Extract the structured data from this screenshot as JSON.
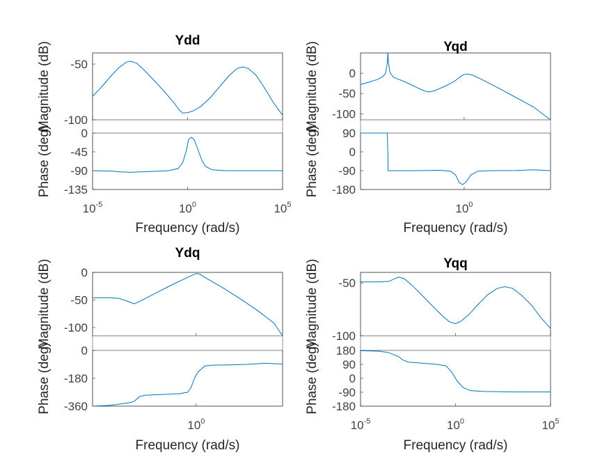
{
  "chart_data": [
    {
      "type": "line",
      "title": "Ydd",
      "xlabel": "Frequency  (rad/s)",
      "xscale": "log",
      "xlim": [
        1e-05,
        100000.0
      ],
      "x_ticks": [
        -5,
        0,
        5
      ],
      "magnitude": {
        "ylabel": "Magnitude (dB)",
        "ylim": [
          -100,
          -40
        ],
        "y_ticks": [
          -50,
          -100
        ],
        "points": [
          [
            -5,
            -79
          ],
          [
            -4.5,
            -70
          ],
          [
            -4,
            -60
          ],
          [
            -3.6,
            -53
          ],
          [
            -3.2,
            -48
          ],
          [
            -3,
            -47.5
          ],
          [
            -2.7,
            -49
          ],
          [
            -2.3,
            -55
          ],
          [
            -1.8,
            -64
          ],
          [
            -1.2,
            -75
          ],
          [
            -0.7,
            -85
          ],
          [
            -0.45,
            -91
          ],
          [
            -0.25,
            -94
          ],
          [
            0,
            -93.5
          ],
          [
            0.3,
            -92
          ],
          [
            0.7,
            -88
          ],
          [
            1.2,
            -80
          ],
          [
            1.7,
            -70
          ],
          [
            2.2,
            -60
          ],
          [
            2.6,
            -54
          ],
          [
            2.9,
            -52.5
          ],
          [
            3.2,
            -54
          ],
          [
            3.6,
            -60
          ],
          [
            4,
            -70
          ],
          [
            4.5,
            -84
          ],
          [
            5,
            -96
          ]
        ]
      },
      "phase": {
        "ylabel": "Phase (deg)",
        "ylim": [
          -135,
          0
        ],
        "y_ticks": [
          0,
          -45,
          -90,
          -135
        ],
        "points": [
          [
            -5,
            -90
          ],
          [
            -4,
            -91
          ],
          [
            -3.5,
            -93
          ],
          [
            -3,
            -94
          ],
          [
            -2.5,
            -93
          ],
          [
            -1.5,
            -91
          ],
          [
            -1,
            -90
          ],
          [
            -0.5,
            -85
          ],
          [
            -0.25,
            -70
          ],
          [
            -0.05,
            -40
          ],
          [
            0.05,
            -16
          ],
          [
            0.2,
            -10
          ],
          [
            0.35,
            -16
          ],
          [
            0.55,
            -40
          ],
          [
            0.75,
            -65
          ],
          [
            0.95,
            -80
          ],
          [
            1.3,
            -88
          ],
          [
            2,
            -90
          ],
          [
            3,
            -90
          ],
          [
            4,
            -90
          ],
          [
            5,
            -90
          ]
        ]
      }
    },
    {
      "type": "line",
      "title": "Yqd",
      "xlabel": "Frequency  (rad/s)",
      "xscale": "log",
      "xlim": [
        1e-06,
        100000.0
      ],
      "x_ticks": [
        0
      ],
      "magnitude": {
        "ylabel": "Magnitude (dB)",
        "ylim": [
          -115,
          50
        ],
        "y_ticks": [
          0,
          -50,
          -100
        ],
        "points": [
          [
            -6,
            -28
          ],
          [
            -5.5,
            -22
          ],
          [
            -5,
            -15
          ],
          [
            -4.7,
            -8
          ],
          [
            -4.55,
            0
          ],
          [
            -4.45,
            25
          ],
          [
            -4.42,
            50
          ],
          [
            -4.38,
            25
          ],
          [
            -4.3,
            2
          ],
          [
            -4.1,
            -10
          ],
          [
            -3.5,
            -20
          ],
          [
            -3,
            -30
          ],
          [
            -2.5,
            -40
          ],
          [
            -2.2,
            -45
          ],
          [
            -2,
            -46
          ],
          [
            -1.7,
            -43
          ],
          [
            -1,
            -30
          ],
          [
            -0.5,
            -18
          ],
          [
            -0.2,
            -8
          ],
          [
            0,
            -3
          ],
          [
            0.2,
            -2
          ],
          [
            0.5,
            -5
          ],
          [
            1,
            -15
          ],
          [
            2,
            -37
          ],
          [
            3,
            -60
          ],
          [
            4,
            -83
          ],
          [
            5,
            -115
          ]
        ]
      },
      "phase": {
        "ylabel": "Phase (deg)",
        "ylim": [
          -180,
          90
        ],
        "y_ticks": [
          90,
          0,
          -90,
          -180
        ],
        "points": [
          [
            -6,
            90
          ],
          [
            -4.45,
            90
          ],
          [
            -4.42,
            0
          ],
          [
            -4.4,
            -90
          ],
          [
            -3,
            -90
          ],
          [
            -2,
            -89
          ],
          [
            -1.5,
            -88
          ],
          [
            -0.8,
            -92
          ],
          [
            -0.5,
            -110
          ],
          [
            -0.3,
            -145
          ],
          [
            -0.1,
            -157
          ],
          [
            0.1,
            -145
          ],
          [
            0.4,
            -110
          ],
          [
            0.8,
            -92
          ],
          [
            1.5,
            -90
          ],
          [
            3,
            -89
          ],
          [
            4,
            -86
          ],
          [
            4.5,
            -88
          ],
          [
            5,
            -90
          ]
        ]
      }
    },
    {
      "type": "line",
      "title": "Ydq",
      "xlabel": "Frequency  (rad/s)",
      "xscale": "log",
      "xlim": [
        1e-06,
        100000.0
      ],
      "x_ticks": [
        0
      ],
      "magnitude": {
        "ylabel": "Magnitude (dB)",
        "ylim": [
          -115,
          0
        ],
        "y_ticks": [
          0,
          -50,
          -100
        ],
        "points": [
          [
            -6,
            -46
          ],
          [
            -5,
            -46
          ],
          [
            -4.5,
            -47
          ],
          [
            -4,
            -52
          ],
          [
            -3.6,
            -57
          ],
          [
            -3.3,
            -53
          ],
          [
            -2.5,
            -40
          ],
          [
            -1.5,
            -24
          ],
          [
            -0.5,
            -9
          ],
          [
            0,
            -2
          ],
          [
            0.2,
            -3
          ],
          [
            0.5,
            -9
          ],
          [
            1.5,
            -27
          ],
          [
            2.5,
            -47
          ],
          [
            3.5,
            -68
          ],
          [
            4.5,
            -92
          ],
          [
            5,
            -115
          ]
        ]
      },
      "phase": {
        "ylabel": "Phase (deg)",
        "ylim": [
          -360,
          0
        ],
        "y_ticks": [
          0,
          -180,
          -360
        ],
        "points": [
          [
            -6,
            -360
          ],
          [
            -5,
            -355
          ],
          [
            -4,
            -340
          ],
          [
            -3.6,
            -330
          ],
          [
            -3.3,
            -300
          ],
          [
            -3,
            -290
          ],
          [
            -2,
            -285
          ],
          [
            -1,
            -280
          ],
          [
            -0.5,
            -270
          ],
          [
            -0.3,
            -240
          ],
          [
            -0.1,
            -180
          ],
          [
            0.1,
            -140
          ],
          [
            0.5,
            -100
          ],
          [
            1,
            -95
          ],
          [
            2,
            -93
          ],
          [
            3,
            -90
          ],
          [
            4,
            -83
          ],
          [
            5,
            -88
          ]
        ]
      }
    },
    {
      "type": "line",
      "title": "Yqq",
      "xlabel": "Frequency  (rad/s)",
      "xscale": "log",
      "xlim": [
        1e-05,
        100000.0
      ],
      "x_ticks": [
        -5,
        0,
        5
      ],
      "magnitude": {
        "ylabel": "Magnitude (dB)",
        "ylim": [
          -100,
          -40
        ],
        "y_ticks": [
          -50,
          -100
        ],
        "points": [
          [
            -5,
            -49
          ],
          [
            -4,
            -49
          ],
          [
            -3.5,
            -48.5
          ],
          [
            -3.2,
            -46
          ],
          [
            -3,
            -44.5
          ],
          [
            -2.7,
            -46
          ],
          [
            -2.3,
            -52
          ],
          [
            -1.8,
            -61
          ],
          [
            -1.2,
            -72
          ],
          [
            -0.7,
            -81
          ],
          [
            -0.3,
            -87
          ],
          [
            0,
            -88.5
          ],
          [
            0.3,
            -86
          ],
          [
            0.7,
            -80
          ],
          [
            1.2,
            -70
          ],
          [
            1.7,
            -61
          ],
          [
            2.2,
            -55
          ],
          [
            2.6,
            -53.5
          ],
          [
            3,
            -55
          ],
          [
            3.5,
            -62
          ],
          [
            4,
            -71
          ],
          [
            4.5,
            -83
          ],
          [
            5,
            -93
          ]
        ]
      },
      "phase": {
        "ylabel": "Phase (deg)",
        "ylim": [
          -180,
          180
        ],
        "y_ticks": [
          180,
          90,
          0,
          -90,
          -180
        ],
        "points": [
          [
            -5,
            178
          ],
          [
            -4,
            175
          ],
          [
            -3.5,
            165
          ],
          [
            -3,
            140
          ],
          [
            -2.8,
            120
          ],
          [
            -2.5,
            105
          ],
          [
            -2,
            100
          ],
          [
            -1,
            90
          ],
          [
            -0.5,
            80
          ],
          [
            -0.2,
            40
          ],
          [
            0.1,
            -20
          ],
          [
            0.4,
            -60
          ],
          [
            0.8,
            -80
          ],
          [
            1.5,
            -85
          ],
          [
            3,
            -88
          ],
          [
            5,
            -88
          ]
        ]
      }
    }
  ]
}
